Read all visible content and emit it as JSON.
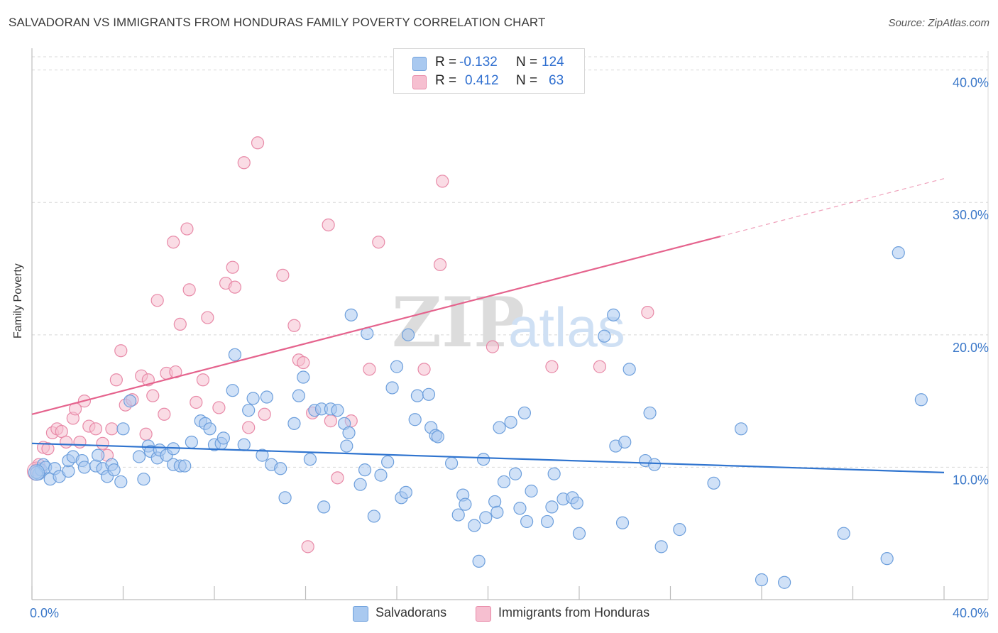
{
  "title": "SALVADORAN VS IMMIGRANTS FROM HONDURAS FAMILY POVERTY CORRELATION CHART",
  "source": "Source: ZipAtlas.com",
  "watermark": {
    "zip": "ZIP",
    "atlas": "atlas"
  },
  "colors": {
    "blue_fill": "#a9c9f0",
    "blue_stroke": "#6d9fdc",
    "blue_line": "#2f74cf",
    "pink_fill": "#f6bfd0",
    "pink_stroke": "#e88aa8",
    "pink_line": "#e5638d",
    "grid": "#d8d8d8",
    "axis_text": "#3b78c9"
  },
  "stats": {
    "rows": [
      {
        "series": "Salvadorans",
        "r_label": "R =",
        "r_value": "-0.132",
        "n_label": "N =",
        "n_value": "124"
      },
      {
        "series": "Immigrants from Honduras",
        "r_label": "R =",
        "r_value": "0.412",
        "n_label": "N =",
        "n_value": "63"
      }
    ]
  },
  "chart_data": {
    "type": "scatter",
    "title": "SALVADORAN VS IMMIGRANTS FROM HONDURAS FAMILY POVERTY CORRELATION CHART",
    "xlabel": "",
    "ylabel": "Family Poverty",
    "xlim": [
      0,
      40
    ],
    "ylim": [
      0,
      41
    ],
    "x_tick_labels": [
      "0.0%",
      "40.0%"
    ],
    "y_ticks": [
      10,
      20,
      30,
      40
    ],
    "y_tick_labels": [
      "10.0%",
      "20.0%",
      "30.0%",
      "40.0%"
    ],
    "grid": true,
    "legend_position": "bottom-center",
    "series": [
      {
        "name": "Salvadorans",
        "r": -0.132,
        "n": 124,
        "trend": {
          "x": [
            0,
            40
          ],
          "y": [
            11.8,
            9.6
          ],
          "dashed_from_x": null
        },
        "points": [
          [
            0.3,
            9.5
          ],
          [
            0.4,
            9.8
          ],
          [
            0.5,
            10.2
          ],
          [
            0.6,
            10.0
          ],
          [
            0.8,
            9.1
          ],
          [
            1.0,
            9.9
          ],
          [
            1.2,
            9.3
          ],
          [
            1.6,
            9.7
          ],
          [
            1.6,
            10.5
          ],
          [
            1.8,
            10.8
          ],
          [
            2.2,
            10.5
          ],
          [
            2.3,
            10.0
          ],
          [
            2.8,
            10.1
          ],
          [
            2.9,
            10.9
          ],
          [
            3.1,
            9.9
          ],
          [
            3.3,
            9.3
          ],
          [
            3.5,
            10.2
          ],
          [
            3.6,
            9.8
          ],
          [
            3.9,
            8.9
          ],
          [
            4.0,
            12.9
          ],
          [
            4.3,
            15.0
          ],
          [
            4.7,
            10.8
          ],
          [
            4.9,
            9.1
          ],
          [
            5.1,
            11.6
          ],
          [
            5.2,
            11.2
          ],
          [
            5.5,
            10.7
          ],
          [
            5.6,
            11.3
          ],
          [
            5.9,
            10.9
          ],
          [
            6.2,
            11.4
          ],
          [
            6.2,
            10.2
          ],
          [
            6.5,
            10.1
          ],
          [
            6.7,
            10.1
          ],
          [
            7.0,
            11.9
          ],
          [
            7.4,
            13.5
          ],
          [
            7.6,
            13.3
          ],
          [
            7.8,
            12.9
          ],
          [
            8.0,
            11.7
          ],
          [
            8.3,
            11.8
          ],
          [
            8.4,
            12.2
          ],
          [
            8.8,
            15.8
          ],
          [
            8.9,
            18.5
          ],
          [
            9.3,
            11.7
          ],
          [
            9.5,
            14.3
          ],
          [
            9.7,
            15.2
          ],
          [
            10.1,
            10.9
          ],
          [
            10.3,
            15.3
          ],
          [
            10.5,
            10.2
          ],
          [
            10.9,
            9.9
          ],
          [
            11.1,
            7.7
          ],
          [
            11.5,
            13.3
          ],
          [
            11.7,
            15.4
          ],
          [
            11.9,
            16.8
          ],
          [
            12.2,
            10.6
          ],
          [
            12.4,
            14.3
          ],
          [
            12.7,
            14.4
          ],
          [
            12.8,
            7.0
          ],
          [
            13.1,
            14.4
          ],
          [
            13.4,
            14.3
          ],
          [
            13.7,
            13.3
          ],
          [
            13.8,
            11.6
          ],
          [
            13.9,
            12.6
          ],
          [
            14.0,
            21.5
          ],
          [
            14.4,
            8.7
          ],
          [
            14.6,
            9.8
          ],
          [
            14.7,
            20.1
          ],
          [
            15.0,
            6.3
          ],
          [
            15.3,
            9.4
          ],
          [
            15.6,
            10.4
          ],
          [
            15.8,
            16.0
          ],
          [
            16.0,
            17.6
          ],
          [
            16.2,
            7.7
          ],
          [
            16.4,
            8.1
          ],
          [
            16.5,
            20.0
          ],
          [
            16.8,
            13.6
          ],
          [
            16.9,
            15.4
          ],
          [
            17.4,
            15.5
          ],
          [
            17.5,
            13.0
          ],
          [
            17.7,
            12.4
          ],
          [
            17.8,
            12.3
          ],
          [
            18.4,
            10.3
          ],
          [
            18.7,
            6.4
          ],
          [
            18.9,
            7.9
          ],
          [
            19.0,
            7.2
          ],
          [
            19.4,
            5.6
          ],
          [
            19.6,
            2.9
          ],
          [
            19.8,
            10.6
          ],
          [
            19.9,
            6.2
          ],
          [
            20.3,
            7.4
          ],
          [
            20.4,
            6.6
          ],
          [
            20.5,
            13.0
          ],
          [
            20.7,
            8.9
          ],
          [
            21.0,
            13.4
          ],
          [
            21.2,
            9.5
          ],
          [
            21.4,
            6.9
          ],
          [
            21.6,
            14.1
          ],
          [
            21.7,
            5.9
          ],
          [
            21.9,
            8.2
          ],
          [
            22.6,
            5.9
          ],
          [
            22.8,
            7.0
          ],
          [
            22.9,
            9.5
          ],
          [
            23.3,
            7.6
          ],
          [
            23.7,
            7.7
          ],
          [
            23.9,
            7.3
          ],
          [
            24.0,
            5.0
          ],
          [
            25.1,
            19.9
          ],
          [
            25.5,
            21.5
          ],
          [
            25.6,
            11.6
          ],
          [
            25.9,
            5.8
          ],
          [
            26.0,
            11.9
          ],
          [
            26.2,
            17.4
          ],
          [
            26.9,
            10.5
          ],
          [
            27.1,
            14.1
          ],
          [
            27.3,
            10.2
          ],
          [
            27.6,
            4.0
          ],
          [
            28.4,
            5.3
          ],
          [
            29.9,
            8.8
          ],
          [
            31.1,
            12.9
          ],
          [
            32.0,
            1.5
          ],
          [
            33.0,
            1.3
          ],
          [
            35.6,
            5.0
          ],
          [
            37.5,
            3.1
          ],
          [
            38.0,
            26.2
          ],
          [
            39.0,
            15.1
          ],
          [
            0.2,
            9.6
          ]
        ]
      },
      {
        "name": "Immigrants from Honduras",
        "r": 0.412,
        "n": 63,
        "trend": {
          "x": [
            0,
            40
          ],
          "y": [
            14.0,
            31.8
          ],
          "dashed_from_x": 30.2
        },
        "points": [
          [
            0.3,
            10.2
          ],
          [
            0.5,
            11.5
          ],
          [
            0.7,
            11.4
          ],
          [
            0.9,
            12.6
          ],
          [
            1.1,
            12.9
          ],
          [
            1.3,
            12.7
          ],
          [
            1.5,
            11.9
          ],
          [
            1.8,
            13.7
          ],
          [
            1.9,
            14.4
          ],
          [
            2.1,
            11.9
          ],
          [
            2.3,
            15.0
          ],
          [
            2.5,
            13.1
          ],
          [
            2.8,
            12.9
          ],
          [
            3.1,
            11.8
          ],
          [
            3.3,
            10.9
          ],
          [
            3.5,
            12.9
          ],
          [
            3.7,
            16.6
          ],
          [
            3.9,
            18.8
          ],
          [
            4.1,
            14.7
          ],
          [
            4.4,
            15.1
          ],
          [
            4.8,
            16.9
          ],
          [
            5.0,
            12.5
          ],
          [
            5.1,
            16.6
          ],
          [
            5.3,
            15.4
          ],
          [
            5.5,
            22.6
          ],
          [
            5.8,
            14.0
          ],
          [
            5.9,
            17.1
          ],
          [
            6.2,
            27.0
          ],
          [
            6.3,
            17.2
          ],
          [
            6.5,
            20.8
          ],
          [
            6.8,
            28.0
          ],
          [
            6.9,
            23.4
          ],
          [
            7.2,
            14.9
          ],
          [
            7.5,
            16.6
          ],
          [
            7.7,
            21.3
          ],
          [
            8.2,
            14.5
          ],
          [
            8.5,
            23.9
          ],
          [
            8.8,
            25.1
          ],
          [
            8.9,
            23.6
          ],
          [
            9.3,
            33.0
          ],
          [
            9.5,
            13.0
          ],
          [
            9.9,
            34.5
          ],
          [
            10.2,
            14.0
          ],
          [
            11.0,
            24.5
          ],
          [
            11.5,
            20.7
          ],
          [
            11.7,
            18.1
          ],
          [
            11.9,
            17.9
          ],
          [
            12.1,
            4.0
          ],
          [
            12.3,
            14.1
          ],
          [
            13.0,
            28.3
          ],
          [
            13.1,
            13.5
          ],
          [
            13.4,
            9.2
          ],
          [
            14.0,
            13.5
          ],
          [
            14.8,
            17.4
          ],
          [
            15.2,
            27.0
          ],
          [
            17.2,
            17.4
          ],
          [
            17.9,
            25.3
          ],
          [
            18.0,
            31.6
          ],
          [
            20.2,
            19.1
          ],
          [
            22.8,
            17.6
          ],
          [
            24.9,
            17.6
          ],
          [
            27.0,
            21.7
          ],
          [
            0.2,
            9.8
          ]
        ]
      }
    ]
  }
}
